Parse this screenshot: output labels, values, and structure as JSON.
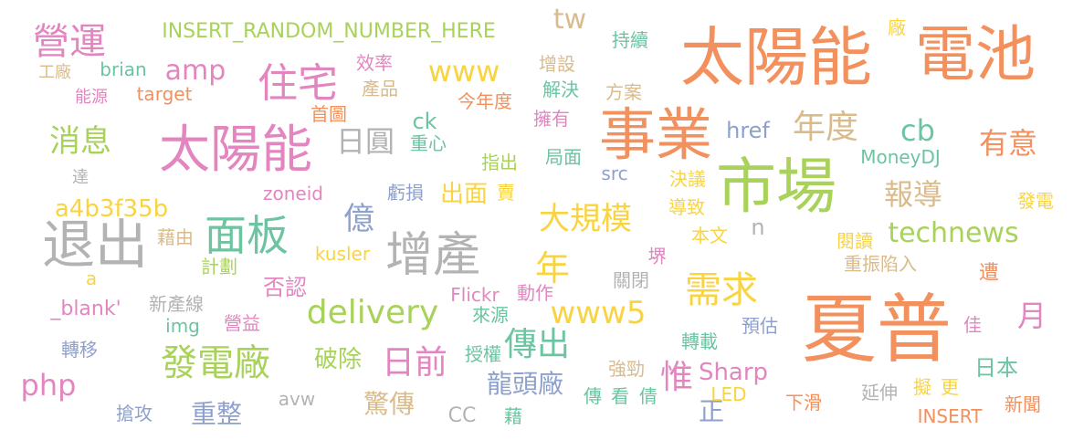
{
  "palette": {
    "orange": "#f2905e",
    "pink": "#e386c0",
    "lime": "#a8d25a",
    "teal": "#6cc4a1",
    "yellow": "#f9d440",
    "tan": "#d9bb8c",
    "gray": "#b3b3b3",
    "blue": "#8ea0cc"
  },
  "words": [
    {
      "id": "w-taiyangneng-big",
      "text": "太陽能",
      "c": "orange"
    },
    {
      "id": "w-dianchi",
      "text": "電池",
      "c": "orange"
    },
    {
      "id": "w-xiapu",
      "text": "夏普",
      "c": "orange"
    },
    {
      "id": "w-shiye",
      "text": "事業",
      "c": "orange"
    },
    {
      "id": "w-shichang",
      "text": "市場",
      "c": "lime"
    },
    {
      "id": "w-taiyangneng",
      "text": "太陽能",
      "c": "pink"
    },
    {
      "id": "w-tuichu",
      "text": "退出",
      "c": "gray"
    },
    {
      "id": "w-zengchan",
      "text": "增產",
      "c": "gray"
    },
    {
      "id": "w-mianban",
      "text": "面板",
      "c": "teal"
    },
    {
      "id": "w-zhuzhai",
      "text": "住宅",
      "c": "pink"
    },
    {
      "id": "w-yingyun",
      "text": "營運",
      "c": "pink"
    },
    {
      "id": "w-insert-random",
      "text": "INSERT_RANDOM_NUMBER_HERE",
      "c": "lime"
    },
    {
      "id": "w-amp",
      "text": "amp",
      "c": "pink"
    },
    {
      "id": "w-www",
      "text": "www",
      "c": "yellow"
    },
    {
      "id": "w-tw",
      "text": "tw",
      "c": "tan"
    },
    {
      "id": "w-brian",
      "text": "brian",
      "c": "teal"
    },
    {
      "id": "w-target",
      "text": "target",
      "c": "orange"
    },
    {
      "id": "w-gongchang",
      "text": "工廠",
      "c": "tan"
    },
    {
      "id": "w-nengyuan",
      "text": "能源",
      "c": "pink"
    },
    {
      "id": "w-xiaoxi",
      "text": "消息",
      "c": "lime"
    },
    {
      "id": "w-riyuan",
      "text": "日圓",
      "c": "gray"
    },
    {
      "id": "w-niandu",
      "text": "年度",
      "c": "tan"
    },
    {
      "id": "w-cb",
      "text": "cb",
      "c": "teal"
    },
    {
      "id": "w-youyi",
      "text": "有意",
      "c": "orange"
    },
    {
      "id": "w-baodao",
      "text": "報導",
      "c": "tan"
    },
    {
      "id": "w-technews",
      "text": "technews",
      "c": "lime"
    },
    {
      "id": "w-daguimo",
      "text": "大規模",
      "c": "yellow"
    },
    {
      "id": "w-xuqiu",
      "text": "需求",
      "c": "yellow"
    },
    {
      "id": "w-nian",
      "text": "年",
      "c": "yellow"
    },
    {
      "id": "w-delivery",
      "text": "delivery",
      "c": "lime"
    },
    {
      "id": "w-www5",
      "text": "www5",
      "c": "yellow"
    },
    {
      "id": "w-fadianchang",
      "text": "發電廠",
      "c": "lime"
    },
    {
      "id": "w-php",
      "text": "php",
      "c": "pink"
    },
    {
      "id": "w-riqian",
      "text": "日前",
      "c": "pink"
    },
    {
      "id": "w-chuanchu",
      "text": "傳出",
      "c": "teal"
    },
    {
      "id": "w-wei",
      "text": "惟",
      "c": "pink"
    },
    {
      "id": "w-sharp",
      "text": "Sharp",
      "c": "pink"
    },
    {
      "id": "w-yue",
      "text": "月",
      "c": "pink"
    },
    {
      "id": "w-a4b3f35b",
      "text": "a4b3f35b",
      "c": "yellow"
    },
    {
      "id": "w-yi",
      "text": "億",
      "c": "blue"
    },
    {
      "id": "w-posu",
      "text": "破除",
      "c": "lime"
    },
    {
      "id": "w-chongzheng",
      "text": "重整",
      "c": "blue"
    },
    {
      "id": "w-longtouchang",
      "text": "龍頭廠",
      "c": "blue"
    },
    {
      "id": "w-jingchuan",
      "text": "驚傳",
      "c": "tan"
    },
    {
      "id": "w-fouren",
      "text": "否認",
      "c": "pink"
    },
    {
      "id": "w-xiaolv",
      "text": "效率",
      "c": "pink"
    },
    {
      "id": "w-zengshe",
      "text": "增設",
      "c": "tan"
    },
    {
      "id": "w-chanpin",
      "text": "產品",
      "c": "tan"
    },
    {
      "id": "w-chixu",
      "text": "持續",
      "c": "teal"
    },
    {
      "id": "w-jiejue",
      "text": "解決",
      "c": "teal"
    },
    {
      "id": "w-fangan",
      "text": "方案",
      "c": "tan"
    },
    {
      "id": "w-jinniandu",
      "text": "今年度",
      "c": "orange"
    },
    {
      "id": "w-shoutu",
      "text": "首圖",
      "c": "orange"
    },
    {
      "id": "w-ck",
      "text": "ck",
      "c": "teal"
    },
    {
      "id": "w-zhongxin",
      "text": "重心",
      "c": "teal"
    },
    {
      "id": "w-yongyou",
      "text": "擁有",
      "c": "pink"
    },
    {
      "id": "w-href",
      "text": "href",
      "c": "blue"
    },
    {
      "id": "w-moneydj",
      "text": "MoneyDJ",
      "c": "teal"
    },
    {
      "id": "w-zhichu",
      "text": "指出",
      "c": "lime"
    },
    {
      "id": "w-jumian",
      "text": "局面",
      "c": "teal"
    },
    {
      "id": "w-src",
      "text": "src",
      "c": "blue"
    },
    {
      "id": "w-jueyi",
      "text": "決議",
      "c": "yellow"
    },
    {
      "id": "w-da",
      "text": "達",
      "c": "gray"
    },
    {
      "id": "w-zoneid",
      "text": "zoneid",
      "c": "pink"
    },
    {
      "id": "w-kuisun",
      "text": "虧損",
      "c": "blue"
    },
    {
      "id": "w-chumian",
      "text": "出面",
      "c": "yellow"
    },
    {
      "id": "w-mai",
      "text": "賣",
      "c": "yellow"
    },
    {
      "id": "w-daozhi",
      "text": "導致",
      "c": "yellow"
    },
    {
      "id": "w-benwen",
      "text": "本文",
      "c": "yellow"
    },
    {
      "id": "w-n",
      "text": "n",
      "c": "gray"
    },
    {
      "id": "w-yuedu",
      "text": "閱讀",
      "c": "yellow"
    },
    {
      "id": "w-jieyou",
      "text": "藉由",
      "c": "tan"
    },
    {
      "id": "w-kusler",
      "text": "kusler",
      "c": "yellow"
    },
    {
      "id": "w-jihua",
      "text": "計劃",
      "c": "lime"
    },
    {
      "id": "w-a",
      "text": "a",
      "c": "yellow"
    },
    {
      "id": "w-jie-v",
      "text": "堺",
      "c": "pink"
    },
    {
      "id": "w-guanbi",
      "text": "關閉",
      "c": "gray"
    },
    {
      "id": "w-zhongzhen",
      "text": "重振陷入",
      "c": "tan"
    },
    {
      "id": "w-zao",
      "text": "遭",
      "c": "orange"
    },
    {
      "id": "w-fadian",
      "text": "發電",
      "c": "yellow"
    },
    {
      "id": "w-chang",
      "text": "廠",
      "c": "yellow"
    },
    {
      "id": "w-blank",
      "text": "_blank'",
      "c": "pink"
    },
    {
      "id": "w-xinchanxian",
      "text": "新產線",
      "c": "gray"
    },
    {
      "id": "w-img",
      "text": "img",
      "c": "teal"
    },
    {
      "id": "w-yingyi",
      "text": "營益",
      "c": "pink"
    },
    {
      "id": "w-flickr",
      "text": "Flickr",
      "c": "pink"
    },
    {
      "id": "w-dongzuo",
      "text": "動作",
      "c": "pink"
    },
    {
      "id": "w-laiyuan",
      "text": "來源",
      "c": "teal"
    },
    {
      "id": "w-yugu",
      "text": "預估",
      "c": "blue"
    },
    {
      "id": "w-zhuanzai",
      "text": "轉載",
      "c": "teal"
    },
    {
      "id": "w-jia",
      "text": "佳",
      "c": "pink"
    },
    {
      "id": "w-zhuanyi",
      "text": "轉移",
      "c": "blue"
    },
    {
      "id": "w-shouquan",
      "text": "授權",
      "c": "teal"
    },
    {
      "id": "w-qiangjin",
      "text": "強勁",
      "c": "tan"
    },
    {
      "id": "w-riben",
      "text": "日本",
      "c": "teal"
    },
    {
      "id": "w-zheng",
      "text": "正",
      "c": "blue"
    },
    {
      "id": "w-qianggong",
      "text": "搶攻",
      "c": "blue"
    },
    {
      "id": "w-avw",
      "text": "avw",
      "c": "gray"
    },
    {
      "id": "w-cc",
      "text": "CC",
      "c": "gray"
    },
    {
      "id": "w-chuan",
      "text": "傳",
      "c": "teal"
    },
    {
      "id": "w-kan",
      "text": "看",
      "c": "teal"
    },
    {
      "id": "w-qian",
      "text": "倩",
      "c": "teal"
    },
    {
      "id": "w-jie",
      "text": "藉",
      "c": "teal"
    },
    {
      "id": "w-led",
      "text": "LED",
      "c": "yellow"
    },
    {
      "id": "w-xiahua",
      "text": "下滑",
      "c": "orange"
    },
    {
      "id": "w-yanshen",
      "text": "延伸",
      "c": "gray"
    },
    {
      "id": "w-ni",
      "text": "擬",
      "c": "yellow"
    },
    {
      "id": "w-geng",
      "text": "更",
      "c": "yellow"
    },
    {
      "id": "w-insert",
      "text": "INSERT",
      "c": "orange"
    },
    {
      "id": "w-xinwen",
      "text": "新聞",
      "c": "orange"
    }
  ]
}
